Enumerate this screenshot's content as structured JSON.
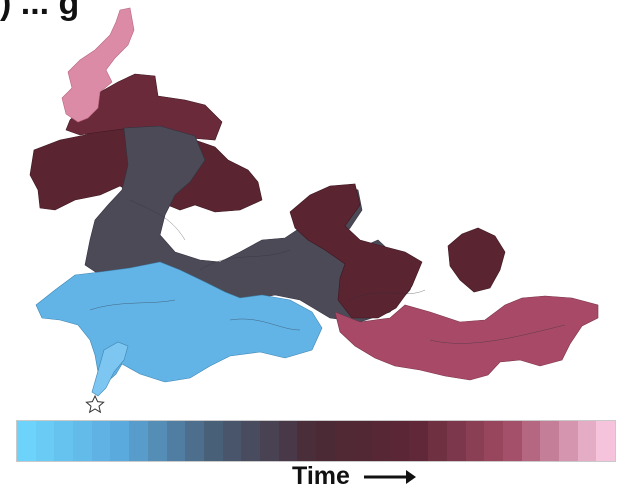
{
  "header": {
    "title_fragment": ") ... g"
  },
  "colorbar": {
    "label": "Time",
    "arrow": "arrow-right-icon",
    "stops": [
      "#6ed3fb",
      "#5aa9dc",
      "#485b72",
      "#4a2a35",
      "#5d2636",
      "#a24c66",
      "#f5c3dc"
    ]
  },
  "regions": {
    "early": "#62b4e6",
    "middle": "#4c4a57",
    "late": "#5a2431",
    "recent": "#a84a67",
    "latest": "#dc8ba6",
    "start_marker": "star-icon"
  }
}
